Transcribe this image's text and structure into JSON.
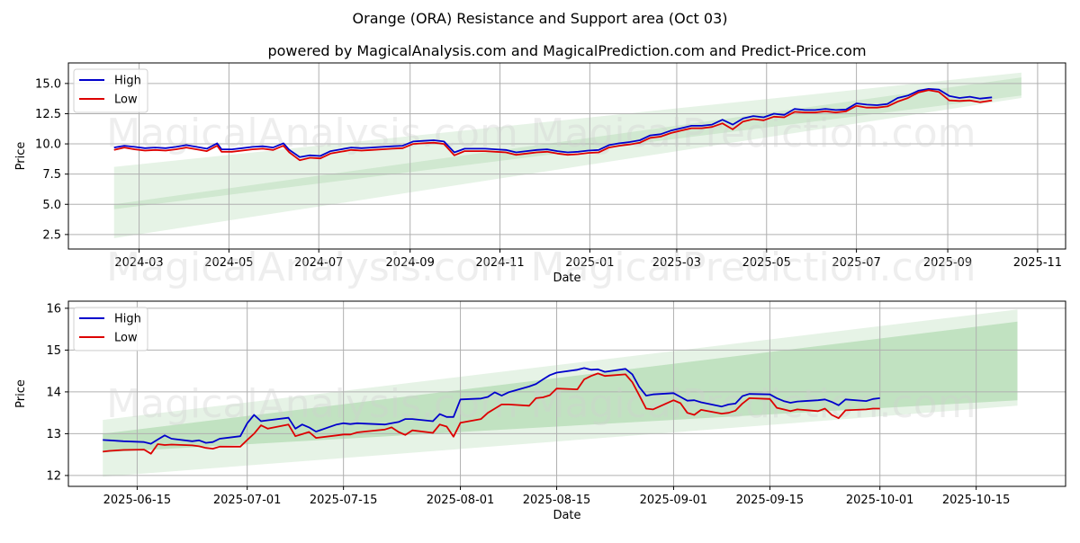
{
  "title": "Orange (ORA) Resistance and Support area (Oct 03)",
  "subtitle": "powered by MagicalAnalysis.com and MagicalPrediction.com and Predict-Price.com",
  "watermarks": [
    "MagicalAnalysis.com",
    "MagicalPrediction.com"
  ],
  "colors": {
    "high": "#0000cc",
    "low": "#dd0000",
    "band": "#2e9e2e"
  },
  "chart_data": [
    {
      "type": "line",
      "title": "",
      "xlabel": "Date",
      "ylabel": "Price",
      "xlim": [
        "2024-01-13",
        "2025-11-20"
      ],
      "ylim": [
        1.3,
        16.7
      ],
      "yticks": [
        2.5,
        5.0,
        7.5,
        10.0,
        12.5,
        15.0
      ],
      "ytick_labels": [
        "2.5",
        "5.0",
        "7.5",
        "10.0",
        "12.5",
        "15.0"
      ],
      "xticks": [
        "2024-03-01",
        "2024-05-01",
        "2024-07-01",
        "2024-09-01",
        "2024-11-01",
        "2025-01-01",
        "2025-03-01",
        "2025-05-01",
        "2025-07-01",
        "2025-09-01",
        "2025-11-01"
      ],
      "xtick_labels": [
        "2024-03",
        "2024-05",
        "2024-07",
        "2024-09",
        "2024-11",
        "2025-01",
        "2025-03",
        "2025-05",
        "2025-07",
        "2025-09",
        "2025-11"
      ],
      "grid": true,
      "legend": {
        "position": "top-left",
        "entries": [
          "High",
          "Low"
        ]
      },
      "bands": [
        {
          "name": "outer",
          "x": [
            "2024-02-13",
            "2025-10-21"
          ],
          "upper": [
            8.1,
            15.9
          ],
          "lower": [
            2.2,
            13.8
          ],
          "opacity": 0.12
        },
        {
          "name": "inner",
          "x": [
            "2024-02-13",
            "2025-10-21"
          ],
          "upper": [
            5.0,
            15.5
          ],
          "lower": [
            4.6,
            14.0
          ],
          "opacity": 0.12
        }
      ],
      "x": [
        "2024-02-13",
        "2024-02-20",
        "2024-02-27",
        "2024-03-05",
        "2024-03-12",
        "2024-03-19",
        "2024-03-26",
        "2024-04-02",
        "2024-04-09",
        "2024-04-16",
        "2024-04-23",
        "2024-04-26",
        "2024-05-03",
        "2024-05-10",
        "2024-05-17",
        "2024-05-24",
        "2024-05-31",
        "2024-06-07",
        "2024-06-11",
        "2024-06-18",
        "2024-06-25",
        "2024-07-02",
        "2024-07-09",
        "2024-07-16",
        "2024-07-23",
        "2024-07-30",
        "2024-08-06",
        "2024-08-13",
        "2024-08-20",
        "2024-08-27",
        "2024-09-03",
        "2024-09-10",
        "2024-09-17",
        "2024-09-24",
        "2024-10-01",
        "2024-10-08",
        "2024-10-15",
        "2024-10-22",
        "2024-10-29",
        "2024-11-05",
        "2024-11-12",
        "2024-11-19",
        "2024-11-26",
        "2024-12-03",
        "2024-12-10",
        "2024-12-17",
        "2024-12-24",
        "2024-12-31",
        "2025-01-07",
        "2025-01-14",
        "2025-01-21",
        "2025-01-28",
        "2025-02-04",
        "2025-02-11",
        "2025-02-18",
        "2025-02-25",
        "2025-03-04",
        "2025-03-11",
        "2025-03-18",
        "2025-03-25",
        "2025-04-01",
        "2025-04-08",
        "2025-04-15",
        "2025-04-22",
        "2025-04-29",
        "2025-05-06",
        "2025-05-13",
        "2025-05-20",
        "2025-05-27",
        "2025-06-03",
        "2025-06-10",
        "2025-06-17",
        "2025-06-24",
        "2025-07-01",
        "2025-07-08",
        "2025-07-15",
        "2025-07-22",
        "2025-07-29",
        "2025-08-05",
        "2025-08-12",
        "2025-08-19",
        "2025-08-26",
        "2025-09-02",
        "2025-09-09",
        "2025-09-16",
        "2025-09-23",
        "2025-10-01"
      ],
      "series": [
        {
          "name": "High",
          "values": [
            9.7,
            9.85,
            9.75,
            9.65,
            9.7,
            9.65,
            9.75,
            9.9,
            9.75,
            9.6,
            10.05,
            9.55,
            9.55,
            9.65,
            9.75,
            9.8,
            9.7,
            10.05,
            9.5,
            8.9,
            9.05,
            9.0,
            9.4,
            9.55,
            9.7,
            9.65,
            9.7,
            9.75,
            9.8,
            9.85,
            10.2,
            10.25,
            10.3,
            10.2,
            9.3,
            9.6,
            9.6,
            9.6,
            9.55,
            9.5,
            9.3,
            9.4,
            9.5,
            9.55,
            9.4,
            9.3,
            9.35,
            9.45,
            9.5,
            9.9,
            10.05,
            10.15,
            10.3,
            10.7,
            10.8,
            11.1,
            11.3,
            11.5,
            11.5,
            11.6,
            12.0,
            11.6,
            12.1,
            12.3,
            12.2,
            12.5,
            12.4,
            12.9,
            12.8,
            12.8,
            12.9,
            12.8,
            12.85,
            13.35,
            13.25,
            13.2,
            13.3,
            13.8,
            14.0,
            14.4,
            14.55,
            14.5,
            13.97,
            13.8,
            13.9,
            13.75,
            13.85
          ]
        },
        {
          "name": "Low",
          "values": [
            9.5,
            9.7,
            9.55,
            9.45,
            9.5,
            9.45,
            9.55,
            9.7,
            9.55,
            9.4,
            9.85,
            9.35,
            9.35,
            9.45,
            9.55,
            9.6,
            9.5,
            9.85,
            9.3,
            8.65,
            8.85,
            8.8,
            9.2,
            9.35,
            9.5,
            9.45,
            9.5,
            9.55,
            9.6,
            9.65,
            10.0,
            10.05,
            10.1,
            10.0,
            9.05,
            9.4,
            9.4,
            9.4,
            9.35,
            9.3,
            9.1,
            9.2,
            9.3,
            9.35,
            9.2,
            9.1,
            9.15,
            9.25,
            9.3,
            9.7,
            9.85,
            9.95,
            10.1,
            10.5,
            10.6,
            10.9,
            11.1,
            11.3,
            11.3,
            11.4,
            11.7,
            11.2,
            11.85,
            12.05,
            11.95,
            12.25,
            12.2,
            12.65,
            12.6,
            12.6,
            12.7,
            12.6,
            12.7,
            13.15,
            13.0,
            13.0,
            13.1,
            13.5,
            13.8,
            14.25,
            14.45,
            14.3,
            13.6,
            13.55,
            13.6,
            13.45,
            13.6
          ]
        }
      ]
    },
    {
      "type": "line",
      "title": "",
      "xlabel": "Date",
      "ylabel": "Price",
      "xlim": [
        "2025-06-05",
        "2025-10-28"
      ],
      "ylim": [
        11.74,
        16.17
      ],
      "yticks": [
        12,
        13,
        14,
        15,
        16
      ],
      "ytick_labels": [
        "12",
        "13",
        "14",
        "15",
        "16"
      ],
      "xticks": [
        "2025-06-15",
        "2025-07-01",
        "2025-07-15",
        "2025-08-01",
        "2025-08-15",
        "2025-09-01",
        "2025-09-15",
        "2025-10-01",
        "2025-10-15"
      ],
      "xtick_labels": [
        "2025-06-15",
        "2025-07-01",
        "2025-07-15",
        "2025-08-01",
        "2025-08-15",
        "2025-09-01",
        "2025-09-15",
        "2025-10-01",
        "2025-10-15"
      ],
      "grid": true,
      "legend": {
        "position": "top-left",
        "entries": [
          "High",
          "Low"
        ]
      },
      "bands": [
        {
          "name": "outer",
          "x": [
            "2025-06-10",
            "2025-10-21"
          ],
          "upper": [
            13.33,
            15.97
          ],
          "lower": [
            11.97,
            13.67
          ],
          "opacity": 0.12
        },
        {
          "name": "inner",
          "x": [
            "2025-06-10",
            "2025-10-21"
          ],
          "upper": [
            13.0,
            15.68
          ],
          "lower": [
            12.55,
            13.8
          ],
          "opacity": 0.2
        }
      ],
      "x": [
        "2025-06-10",
        "2025-06-11",
        "2025-06-12",
        "2025-06-13",
        "2025-06-16",
        "2025-06-17",
        "2025-06-18",
        "2025-06-19",
        "2025-06-20",
        "2025-06-23",
        "2025-06-24",
        "2025-06-25",
        "2025-06-26",
        "2025-06-27",
        "2025-06-30",
        "2025-07-01",
        "2025-07-02",
        "2025-07-03",
        "2025-07-04",
        "2025-07-07",
        "2025-07-08",
        "2025-07-09",
        "2025-07-10",
        "2025-07-11",
        "2025-07-14",
        "2025-07-15",
        "2025-07-16",
        "2025-07-17",
        "2025-07-18",
        "2025-07-21",
        "2025-07-22",
        "2025-07-23",
        "2025-07-24",
        "2025-07-25",
        "2025-07-28",
        "2025-07-29",
        "2025-07-30",
        "2025-07-31",
        "2025-08-01",
        "2025-08-04",
        "2025-08-05",
        "2025-08-06",
        "2025-08-07",
        "2025-08-08",
        "2025-08-11",
        "2025-08-12",
        "2025-08-13",
        "2025-08-14",
        "2025-08-15",
        "2025-08-18",
        "2025-08-19",
        "2025-08-20",
        "2025-08-21",
        "2025-08-22",
        "2025-08-25",
        "2025-08-26",
        "2025-08-27",
        "2025-08-28",
        "2025-08-29",
        "2025-09-01",
        "2025-09-02",
        "2025-09-03",
        "2025-09-04",
        "2025-09-05",
        "2025-09-08",
        "2025-09-09",
        "2025-09-10",
        "2025-09-11",
        "2025-09-12",
        "2025-09-15",
        "2025-09-16",
        "2025-09-17",
        "2025-09-18",
        "2025-09-19",
        "2025-09-22",
        "2025-09-23",
        "2025-09-24",
        "2025-09-25",
        "2025-09-26",
        "2025-09-29",
        "2025-09-30",
        "2025-10-01"
      ],
      "series": [
        {
          "name": "High",
          "values": [
            12.85,
            12.84,
            12.83,
            12.82,
            12.8,
            12.76,
            12.86,
            12.96,
            12.88,
            12.82,
            12.84,
            12.78,
            12.8,
            12.88,
            12.94,
            13.25,
            13.45,
            13.3,
            13.32,
            13.38,
            13.12,
            13.22,
            13.15,
            13.05,
            13.22,
            13.25,
            13.23,
            13.25,
            13.24,
            13.22,
            13.25,
            13.28,
            13.35,
            13.35,
            13.3,
            13.47,
            13.4,
            13.4,
            13.82,
            13.84,
            13.88,
            13.99,
            13.91,
            13.99,
            14.13,
            14.19,
            14.3,
            14.4,
            14.46,
            14.53,
            14.57,
            14.53,
            14.54,
            14.48,
            14.55,
            14.42,
            14.12,
            13.91,
            13.94,
            13.97,
            13.88,
            13.79,
            13.8,
            13.75,
            13.65,
            13.7,
            13.72,
            13.9,
            13.95,
            13.94,
            13.85,
            13.78,
            13.74,
            13.77,
            13.8,
            13.82,
            13.76,
            13.68,
            13.82,
            13.78,
            13.83,
            13.85
          ]
        },
        {
          "name": "Low",
          "values": [
            12.57,
            12.59,
            12.6,
            12.61,
            12.62,
            12.52,
            12.75,
            12.73,
            12.74,
            12.72,
            12.7,
            12.66,
            12.64,
            12.69,
            12.69,
            12.85,
            13.0,
            13.2,
            13.12,
            13.22,
            12.94,
            12.99,
            13.04,
            12.9,
            12.96,
            12.98,
            12.98,
            13.03,
            13.05,
            13.1,
            13.15,
            13.04,
            12.97,
            13.08,
            13.02,
            13.22,
            13.17,
            12.93,
            13.26,
            13.35,
            13.5,
            13.6,
            13.7,
            13.7,
            13.67,
            13.85,
            13.87,
            13.92,
            14.08,
            14.06,
            14.3,
            14.38,
            14.44,
            14.38,
            14.42,
            14.23,
            13.92,
            13.6,
            13.58,
            13.8,
            13.73,
            13.5,
            13.45,
            13.57,
            13.48,
            13.5,
            13.55,
            13.72,
            13.85,
            13.83,
            13.62,
            13.58,
            13.54,
            13.58,
            13.54,
            13.6,
            13.45,
            13.37,
            13.56,
            13.58,
            13.6,
            13.6
          ]
        }
      ]
    }
  ]
}
